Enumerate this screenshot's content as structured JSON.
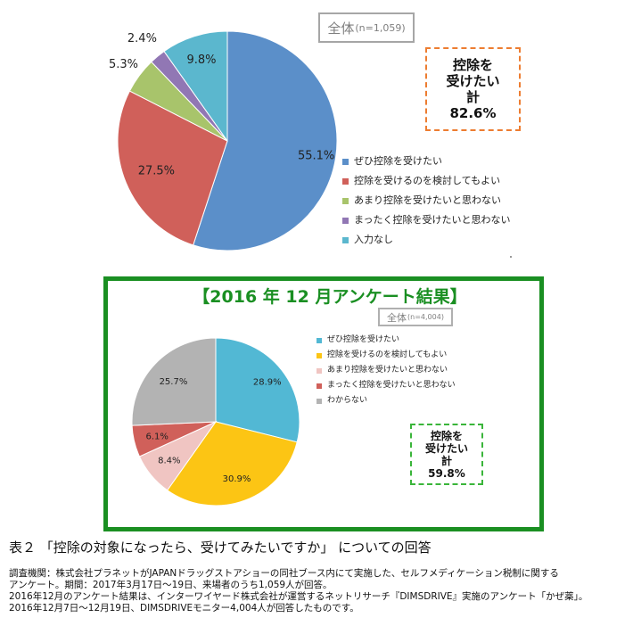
{
  "chart_data": [
    {
      "type": "pie",
      "total_label": "全体",
      "total_n": "(n=1,059)",
      "slices": [
        {
          "label": "ぜひ控除を受けたい",
          "value": 55.1,
          "value_label": "55.1%",
          "color": "#5b8fc9"
        },
        {
          "label": "控除を受けるのを検討してもよい",
          "value": 27.5,
          "value_label": "27.5%",
          "color": "#d0605a"
        },
        {
          "label": "あまり控除を受けたいと思わない",
          "value": 5.3,
          "value_label": "5.3%",
          "color": "#a8c46b"
        },
        {
          "label": "まったく控除を受けたいと思わない",
          "value": 2.4,
          "value_label": "2.4%",
          "color": "#9177b4"
        },
        {
          "label": "入力なし",
          "value": 9.8,
          "value_label": "9.8%",
          "color": "#5bb7ce"
        }
      ],
      "summary": [
        "控除を",
        "受けたい",
        "計",
        "82.6%"
      ]
    },
    {
      "type": "pie",
      "title": "【2016 年 12 月アンケート結果】",
      "total_label": "全体",
      "total_n": "(n=4,004)",
      "slices": [
        {
          "label": "ぜひ控除を受けたい",
          "value": 28.9,
          "value_label": "28.9%",
          "color": "#52b8d4"
        },
        {
          "label": "控除を受けるのを検討してもよい",
          "value": 30.9,
          "value_label": "30.9%",
          "color": "#fcc514"
        },
        {
          "label": "あまり控除を受けたいと思わない",
          "value": 8.4,
          "value_label": "8.4%",
          "color": "#f0c5c2"
        },
        {
          "label": "まったく控除を受けたいと思わない",
          "value": 6.1,
          "value_label": "6.1%",
          "color": "#d0605a"
        },
        {
          "label": "わからない",
          "value": 25.7,
          "value_label": "25.7%",
          "color": "#b3b3b3"
        }
      ],
      "summary": [
        "控除を",
        "受けたい",
        "計",
        "59.8%"
      ]
    }
  ],
  "caption": {
    "title": "表２ 「控除の対象になったら、受けてみたいですか」 についての回答",
    "notes": [
      "調査機関：株式会社プラネットがJAPANドラッグストアショーの同社ブース内にて実施した、セルフメディケーション税制に関する",
      "アンケート。期間：2017年3月17日～19日、来場者のうち1,059人が回答。",
      "2016年12月のアンケート結果は、インターワイヤード株式会社が運営するネットリサーチ『DIMSDRIVE』実施のアンケート「かぜ薬」。",
      "2016年12月7日～12月19日、DIMSDRIVEモニター4,004人が回答したものです。"
    ]
  }
}
